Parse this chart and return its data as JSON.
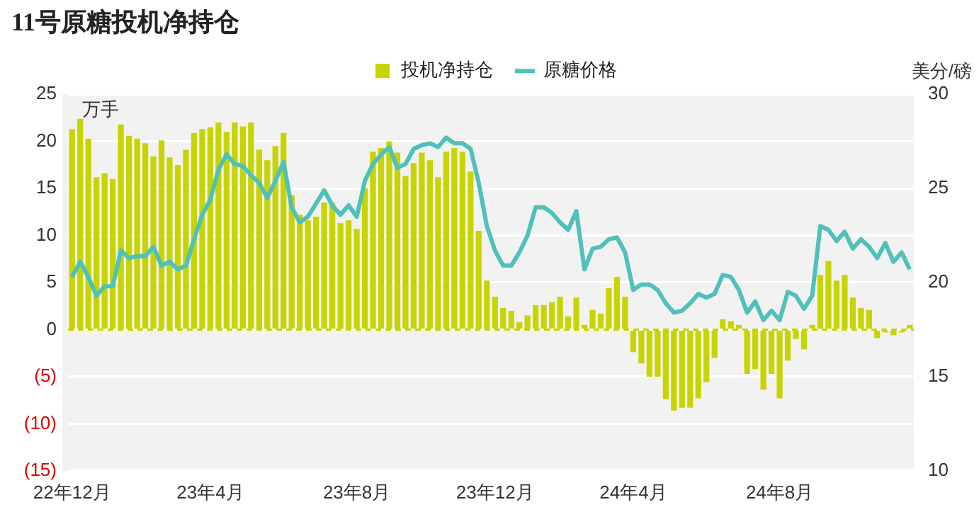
{
  "chart_data": {
    "type": "bar",
    "title": "11号原糖投机净持仓",
    "ylabel": "万手",
    "y2label": "美分/磅",
    "categories": [
      "22年12月",
      null,
      null,
      null,
      null,
      null,
      null,
      null,
      null,
      null,
      null,
      null,
      null,
      null,
      null,
      null,
      null,
      "23年4月",
      null,
      null,
      null,
      null,
      null,
      null,
      null,
      null,
      null,
      null,
      null,
      null,
      null,
      null,
      null,
      null,
      null,
      "23年8月",
      null,
      null,
      null,
      null,
      null,
      null,
      null,
      null,
      null,
      null,
      null,
      null,
      null,
      null,
      null,
      null,
      "23年12月",
      null,
      null,
      null,
      null,
      null,
      null,
      null,
      null,
      null,
      null,
      null,
      null,
      null,
      null,
      null,
      null,
      "24年4月",
      null,
      null,
      null,
      null,
      null,
      null,
      null,
      null,
      null,
      null,
      null,
      null,
      null,
      null,
      null,
      null,
      null,
      "24年8月",
      null,
      null,
      null,
      null,
      null,
      null,
      null,
      null,
      null,
      null,
      null,
      null,
      null,
      null,
      null,
      null
    ],
    "series": [
      {
        "name": "投机净持仓",
        "color": "#c8d400",
        "values": [
          21.3,
          22.4,
          20.3,
          16.2,
          16.6,
          16.0,
          21.8,
          20.6,
          20.3,
          19.8,
          18.4,
          20.1,
          18.3,
          17.5,
          19.1,
          20.9,
          21.3,
          21.5,
          22.0,
          21.0,
          22.0,
          21.6,
          22.0,
          19.1,
          18.0,
          19.5,
          20.9,
          14.3,
          12.2,
          11.6,
          12.0,
          13.5,
          13.5,
          11.3,
          11.6,
          10.7,
          15.0,
          18.9,
          19.3,
          20.0,
          18.8,
          16.3,
          17.7,
          18.8,
          18.0,
          16.2,
          18.9,
          19.3,
          18.9,
          16.8,
          10.5,
          5.2,
          3.5,
          2.3,
          2.0,
          0.8,
          1.5,
          2.6,
          2.6,
          2.9,
          3.5,
          1.4,
          3.4,
          0.5,
          2.1,
          1.7,
          4.4,
          5.6,
          3.5,
          -2.4,
          -3.6,
          -5.0,
          -5.0,
          -7.4,
          -8.6,
          -8.3,
          -8.3,
          -7.3,
          -5.6,
          -3.0,
          1.1,
          0.9,
          0.5,
          -4.7,
          -4.2,
          -6.4,
          -4.7,
          -7.3,
          -3.3,
          -1.0,
          -2.1,
          0.5,
          5.8,
          7.3,
          5.2,
          5.8,
          3.4,
          2.3,
          2.1,
          -0.9,
          -0.3,
          -0.6,
          -0.3,
          0.5
        ]
      },
      {
        "name": "原糖价格",
        "type": "line",
        "axis": "y2",
        "color": "#4fc1b9",
        "values": [
          20.3,
          21.1,
          20.3,
          19.3,
          19.8,
          19.8,
          21.7,
          21.3,
          21.4,
          21.4,
          21.9,
          20.9,
          21.1,
          20.7,
          20.9,
          22.3,
          23.6,
          24.4,
          26.0,
          26.8,
          26.3,
          26.2,
          25.7,
          25.3,
          24.5,
          25.4,
          26.4,
          24.0,
          23.2,
          23.5,
          24.2,
          24.9,
          24.1,
          23.6,
          24.1,
          23.5,
          25.4,
          26.3,
          26.8,
          27.2,
          26.1,
          26.3,
          27.1,
          27.3,
          27.4,
          27.2,
          27.7,
          27.4,
          27.4,
          27.1,
          25.3,
          23.0,
          21.7,
          20.9,
          20.9,
          21.6,
          22.5,
          24.0,
          24.0,
          23.7,
          23.2,
          22.8,
          23.8,
          20.7,
          21.8,
          21.9,
          22.3,
          22.4,
          21.6,
          19.6,
          19.9,
          19.9,
          19.6,
          18.9,
          18.4,
          18.5,
          18.9,
          19.4,
          19.2,
          19.4,
          20.4,
          20.3,
          19.6,
          18.4,
          19.0,
          18.0,
          18.5,
          18.0,
          19.5,
          19.3,
          18.6,
          19.3,
          23.0,
          22.8,
          22.2,
          22.7,
          21.8,
          22.3,
          21.9,
          21.3,
          22.1,
          21.1,
          21.6,
          20.7
        ]
      }
    ],
    "ylim": [
      -15,
      25
    ],
    "yticks": [
      {
        "value": -15,
        "label": "(15)"
      },
      {
        "value": -10,
        "label": "(10)"
      },
      {
        "value": -5,
        "label": "(5)"
      },
      0,
      5,
      10,
      15,
      20,
      25
    ],
    "y2lim": [
      10,
      30
    ],
    "y2ticks": [
      10,
      15,
      20,
      25,
      30
    ],
    "ref_lines": [
      {
        "axis": "y",
        "value": 0,
        "color": "#c8d400",
        "line_style": "dashed"
      }
    ],
    "grid": "y",
    "legend": "top"
  }
}
